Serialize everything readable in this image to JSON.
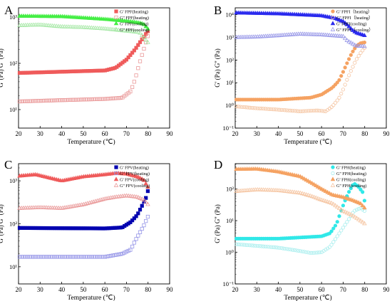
{
  "colors": {
    "red": "#ef5b5b",
    "pink": "#ea9a9a",
    "green": "#44ee44",
    "lgreen": "#a6e8a6",
    "orange": "#f5a262",
    "peach": "#f5c4a0",
    "blue": "#2b2bee",
    "lblue": "#9797e8",
    "navy": "#0000b0",
    "cyan": "#30e8e8",
    "lcyan": "#a8eeee"
  },
  "chart_data": [
    {
      "panel_letter": "A",
      "type": "scatter",
      "scale": "log",
      "xlabel": "Temperature  (℃)",
      "ylabel": "G' (Pa)  G'' (Pa)",
      "xlim": [
        20,
        90
      ],
      "ylim_exp": [
        0.6,
        3.2
      ],
      "x_ticks": [
        "20",
        "30",
        "40",
        "50",
        "60",
        "70",
        "80",
        "90"
      ],
      "y_ticks": [
        {
          "exp": 1,
          "label": "10¹"
        },
        {
          "exp": 2,
          "label": "10²"
        },
        {
          "exp": 3,
          "label": "10³"
        }
      ],
      "legend_position": "top-right",
      "series": [
        {
          "name": "G' FPF(heating)",
          "marker": "square",
          "filled": true,
          "color": "#ef5b5b",
          "start": 20.5,
          "end": 80,
          "points": [
            [
              20.5,
              62
            ],
            [
              60,
              70
            ],
            [
              65,
              80
            ],
            [
              70,
              120
            ],
            [
              74,
              200
            ],
            [
              77,
              320
            ],
            [
              80,
              500
            ]
          ]
        },
        {
          "name": "G'' FPF(heating)",
          "marker": "square",
          "filled": false,
          "color": "#ea9a9a",
          "start": 20.5,
          "end": 80,
          "points": [
            [
              20.5,
              15
            ],
            [
              40,
              16
            ],
            [
              60,
              17
            ],
            [
              68,
              18
            ],
            [
              72,
              25
            ],
            [
              74,
              45
            ],
            [
              76,
              100
            ],
            [
              78,
              200
            ],
            [
              80,
              400
            ]
          ]
        },
        {
          "name": "G' FPF(cooling)",
          "marker": "triangle",
          "filled": true,
          "color": "#44ee44",
          "start": 20.5,
          "end": 80,
          "points": [
            [
              20.5,
              1050
            ],
            [
              40,
              1030
            ],
            [
              60,
              900
            ],
            [
              70,
              820
            ],
            [
              76,
              750
            ],
            [
              78,
              700
            ],
            [
              80,
              550
            ]
          ]
        },
        {
          "name": "G'' FPF(cooling)",
          "marker": "triangle",
          "filled": false,
          "color": "#a6e8a6",
          "start": 20.5,
          "end": 80,
          "points": [
            [
              20.5,
              660
            ],
            [
              30,
              680
            ],
            [
              40,
              620
            ],
            [
              50,
              600
            ],
            [
              60,
              560
            ],
            [
              70,
              500
            ],
            [
              76,
              470
            ],
            [
              80,
              280
            ]
          ]
        }
      ]
    },
    {
      "panel_letter": "B",
      "type": "scatter",
      "scale": "log",
      "xlabel": "Temperature  (℃)",
      "ylabel": "G' (Pa)  G'' (Pa)",
      "xlim": [
        20,
        90
      ],
      "ylim_exp": [
        -1,
        4.3
      ],
      "x_ticks": [
        "20",
        "30",
        "40",
        "50",
        "60",
        "70",
        "80",
        "90"
      ],
      "y_ticks": [
        {
          "exp": -1,
          "label": "10⁻¹"
        },
        {
          "exp": 0,
          "label": "10⁰"
        },
        {
          "exp": 1,
          "label": "10¹"
        },
        {
          "exp": 2,
          "label": "10²"
        },
        {
          "exp": 3,
          "label": "10³"
        },
        {
          "exp": 4,
          "label": "10⁴"
        }
      ],
      "legend_position": "top-right",
      "series": [
        {
          "name": "G' FPFI（heating）",
          "marker": "circle",
          "filled": true,
          "color": "#f5a262",
          "start": 20.5,
          "end": 80,
          "points": [
            [
              20.5,
              1.8
            ],
            [
              40,
              1.8
            ],
            [
              55,
              2.2
            ],
            [
              60,
              3
            ],
            [
              65,
              6
            ],
            [
              68,
              12
            ],
            [
              70,
              30
            ],
            [
              72,
              80
            ],
            [
              74,
              200
            ],
            [
              76,
              400
            ],
            [
              78,
              550
            ],
            [
              80,
              600
            ]
          ]
        },
        {
          "name": "G'' FPFI（heating）",
          "marker": "circle",
          "filled": false,
          "color": "#f5c4a0",
          "start": 20.5,
          "end": 80,
          "points": [
            [
              20.5,
              0.9
            ],
            [
              30,
              0.75
            ],
            [
              40,
              0.65
            ],
            [
              50,
              0.55
            ],
            [
              58,
              0.6
            ],
            [
              62,
              0.55
            ],
            [
              65,
              0.9
            ],
            [
              68,
              2
            ],
            [
              70,
              5
            ],
            [
              72,
              15
            ],
            [
              74,
              40
            ],
            [
              76,
              100
            ],
            [
              78,
              200
            ],
            [
              80,
              350
            ]
          ]
        },
        {
          "name": "G' FPFI(cooling)",
          "marker": "triangle",
          "filled": true,
          "color": "#2b2bee",
          "start": 20.5,
          "end": 80,
          "points": [
            [
              20.5,
              12000
            ],
            [
              40,
              11000
            ],
            [
              60,
              9000
            ],
            [
              66,
              7000
            ],
            [
              70,
              5000
            ],
            [
              72,
              3500
            ],
            [
              74,
              2200
            ],
            [
              76,
              1600
            ],
            [
              80,
              1200
            ]
          ]
        },
        {
          "name": "G'' FPFI（cooling）",
          "marker": "triangle",
          "filled": false,
          "color": "#9797e8",
          "start": 20.5,
          "end": 80,
          "points": [
            [
              20.5,
              1000
            ],
            [
              30,
              1050
            ],
            [
              40,
              1200
            ],
            [
              50,
              1400
            ],
            [
              60,
              1300
            ],
            [
              70,
              1100
            ],
            [
              72,
              700
            ],
            [
              74,
              550
            ],
            [
              76,
              420
            ],
            [
              80,
              400
            ]
          ]
        }
      ]
    },
    {
      "panel_letter": "C",
      "type": "scatter",
      "scale": "log",
      "xlabel": "Temperature  (℃)",
      "ylabel": "G' (Pa)  G'' (Pa)",
      "xlim": [
        20,
        90
      ],
      "ylim_exp": [
        0.6,
        3.4
      ],
      "x_ticks": [
        "20",
        "30",
        "40",
        "50",
        "60",
        "70",
        "80",
        "90"
      ],
      "y_ticks": [
        {
          "exp": 1,
          "label": "10¹"
        },
        {
          "exp": 2,
          "label": "10²"
        },
        {
          "exp": 3,
          "label": "10³"
        }
      ],
      "legend_position": "top-right",
      "series": [
        {
          "name": "G' FPV(heating)",
          "marker": "square",
          "filled": true,
          "color": "#0000b0",
          "start": 20.5,
          "end": 80,
          "points": [
            [
              20.5,
              80
            ],
            [
              60,
              78
            ],
            [
              68,
              82
            ],
            [
              72,
              110
            ],
            [
              75,
              160
            ],
            [
              77,
              250
            ],
            [
              79,
              400
            ],
            [
              80,
              600
            ]
          ]
        },
        {
          "name": "G'' FPV(heating)",
          "marker": "square",
          "filled": false,
          "color": "#9797e8",
          "start": 20.5,
          "end": 80,
          "points": [
            [
              20.5,
              17
            ],
            [
              60,
              17
            ],
            [
              68,
              20
            ],
            [
              72,
              25
            ],
            [
              74,
              40
            ],
            [
              76,
              60
            ],
            [
              78,
              90
            ],
            [
              80,
              150
            ]
          ]
        },
        {
          "name": "G' FPV(cooling)",
          "marker": "triangle",
          "filled": true,
          "color": "#ef5b5b",
          "start": 20.5,
          "end": 80,
          "points": [
            [
              20.5,
              1300
            ],
            [
              28,
              1400
            ],
            [
              35,
              1150
            ],
            [
              40,
              1000
            ],
            [
              50,
              1250
            ],
            [
              60,
              1400
            ],
            [
              65,
              1500
            ],
            [
              70,
              1450
            ],
            [
              75,
              1250
            ],
            [
              78,
              1050
            ],
            [
              80,
              700
            ]
          ]
        },
        {
          "name": "G'' FPV(cooling)",
          "marker": "triangle",
          "filled": false,
          "color": "#ea9a9a",
          "start": 20.5,
          "end": 80,
          "points": [
            [
              20.5,
              230
            ],
            [
              30,
              240
            ],
            [
              40,
              230
            ],
            [
              50,
              280
            ],
            [
              60,
              380
            ],
            [
              65,
              420
            ],
            [
              70,
              450
            ],
            [
              75,
              420
            ],
            [
              78,
              360
            ],
            [
              80,
              280
            ]
          ]
        }
      ]
    },
    {
      "panel_letter": "D",
      "type": "scatter",
      "scale": "log",
      "xlabel": "Temperature  (℃)",
      "ylabel": "G' (Pa)  G'' (Pa)",
      "xlim": [
        20,
        90
      ],
      "ylim_exp": [
        -1,
        2.8
      ],
      "x_ticks": [
        "20",
        "30",
        "40",
        "50",
        "60",
        "70",
        "80",
        "90"
      ],
      "y_ticks": [
        {
          "exp": -1,
          "label": "10⁻¹"
        },
        {
          "exp": 0,
          "label": "10⁰"
        },
        {
          "exp": 1,
          "label": "10¹"
        },
        {
          "exp": 2,
          "label": "10²"
        }
      ],
      "legend_position": "top-right",
      "series": [
        {
          "name": "G' FPH(heating)",
          "marker": "circle",
          "filled": true,
          "color": "#30e8e8",
          "start": 20.5,
          "end": 80,
          "points": [
            [
              20.5,
              2.7
            ],
            [
              40,
              2.7
            ],
            [
              60,
              3.2
            ],
            [
              64,
              4
            ],
            [
              67,
              8
            ],
            [
              69,
              20
            ],
            [
              71,
              45
            ],
            [
              73,
              90
            ],
            [
              75,
              150
            ],
            [
              77,
              120
            ],
            [
              79,
              80
            ],
            [
              80,
              40
            ]
          ]
        },
        {
          "name": "G'' FPH(heating)",
          "marker": "circle",
          "filled": false,
          "color": "#a8eeee",
          "start": 20.5,
          "end": 80,
          "points": [
            [
              20.5,
              1.8
            ],
            [
              30,
              1.6
            ],
            [
              40,
              1.4
            ],
            [
              50,
              1.1
            ],
            [
              55,
              0.95
            ],
            [
              60,
              1
            ],
            [
              64,
              1.5
            ],
            [
              67,
              3
            ],
            [
              70,
              6
            ],
            [
              73,
              12
            ],
            [
              75,
              20
            ],
            [
              78,
              25
            ],
            [
              80,
              20
            ]
          ]
        },
        {
          "name": "G' FPH(cooling)",
          "marker": "triangle",
          "filled": true,
          "color": "#f5a262",
          "start": 20.5,
          "end": 80,
          "points": [
            [
              20.5,
              420
            ],
            [
              30,
              430
            ],
            [
              40,
              350
            ],
            [
              50,
              250
            ],
            [
              55,
              160
            ],
            [
              60,
              100
            ],
            [
              65,
              65
            ],
            [
              70,
              55
            ],
            [
              74,
              45
            ],
            [
              78,
              35
            ],
            [
              80,
              25
            ]
          ]
        },
        {
          "name": "G'' FPH(cooling)",
          "marker": "triangle",
          "filled": false,
          "color": "#f5c4a0",
          "start": 20.5,
          "end": 80,
          "points": [
            [
              20.5,
              85
            ],
            [
              30,
              95
            ],
            [
              40,
              90
            ],
            [
              50,
              75
            ],
            [
              55,
              60
            ],
            [
              60,
              45
            ],
            [
              65,
              35
            ],
            [
              70,
              20
            ],
            [
              74,
              15
            ],
            [
              78,
              10
            ],
            [
              80,
              8
            ]
          ]
        }
      ]
    }
  ]
}
